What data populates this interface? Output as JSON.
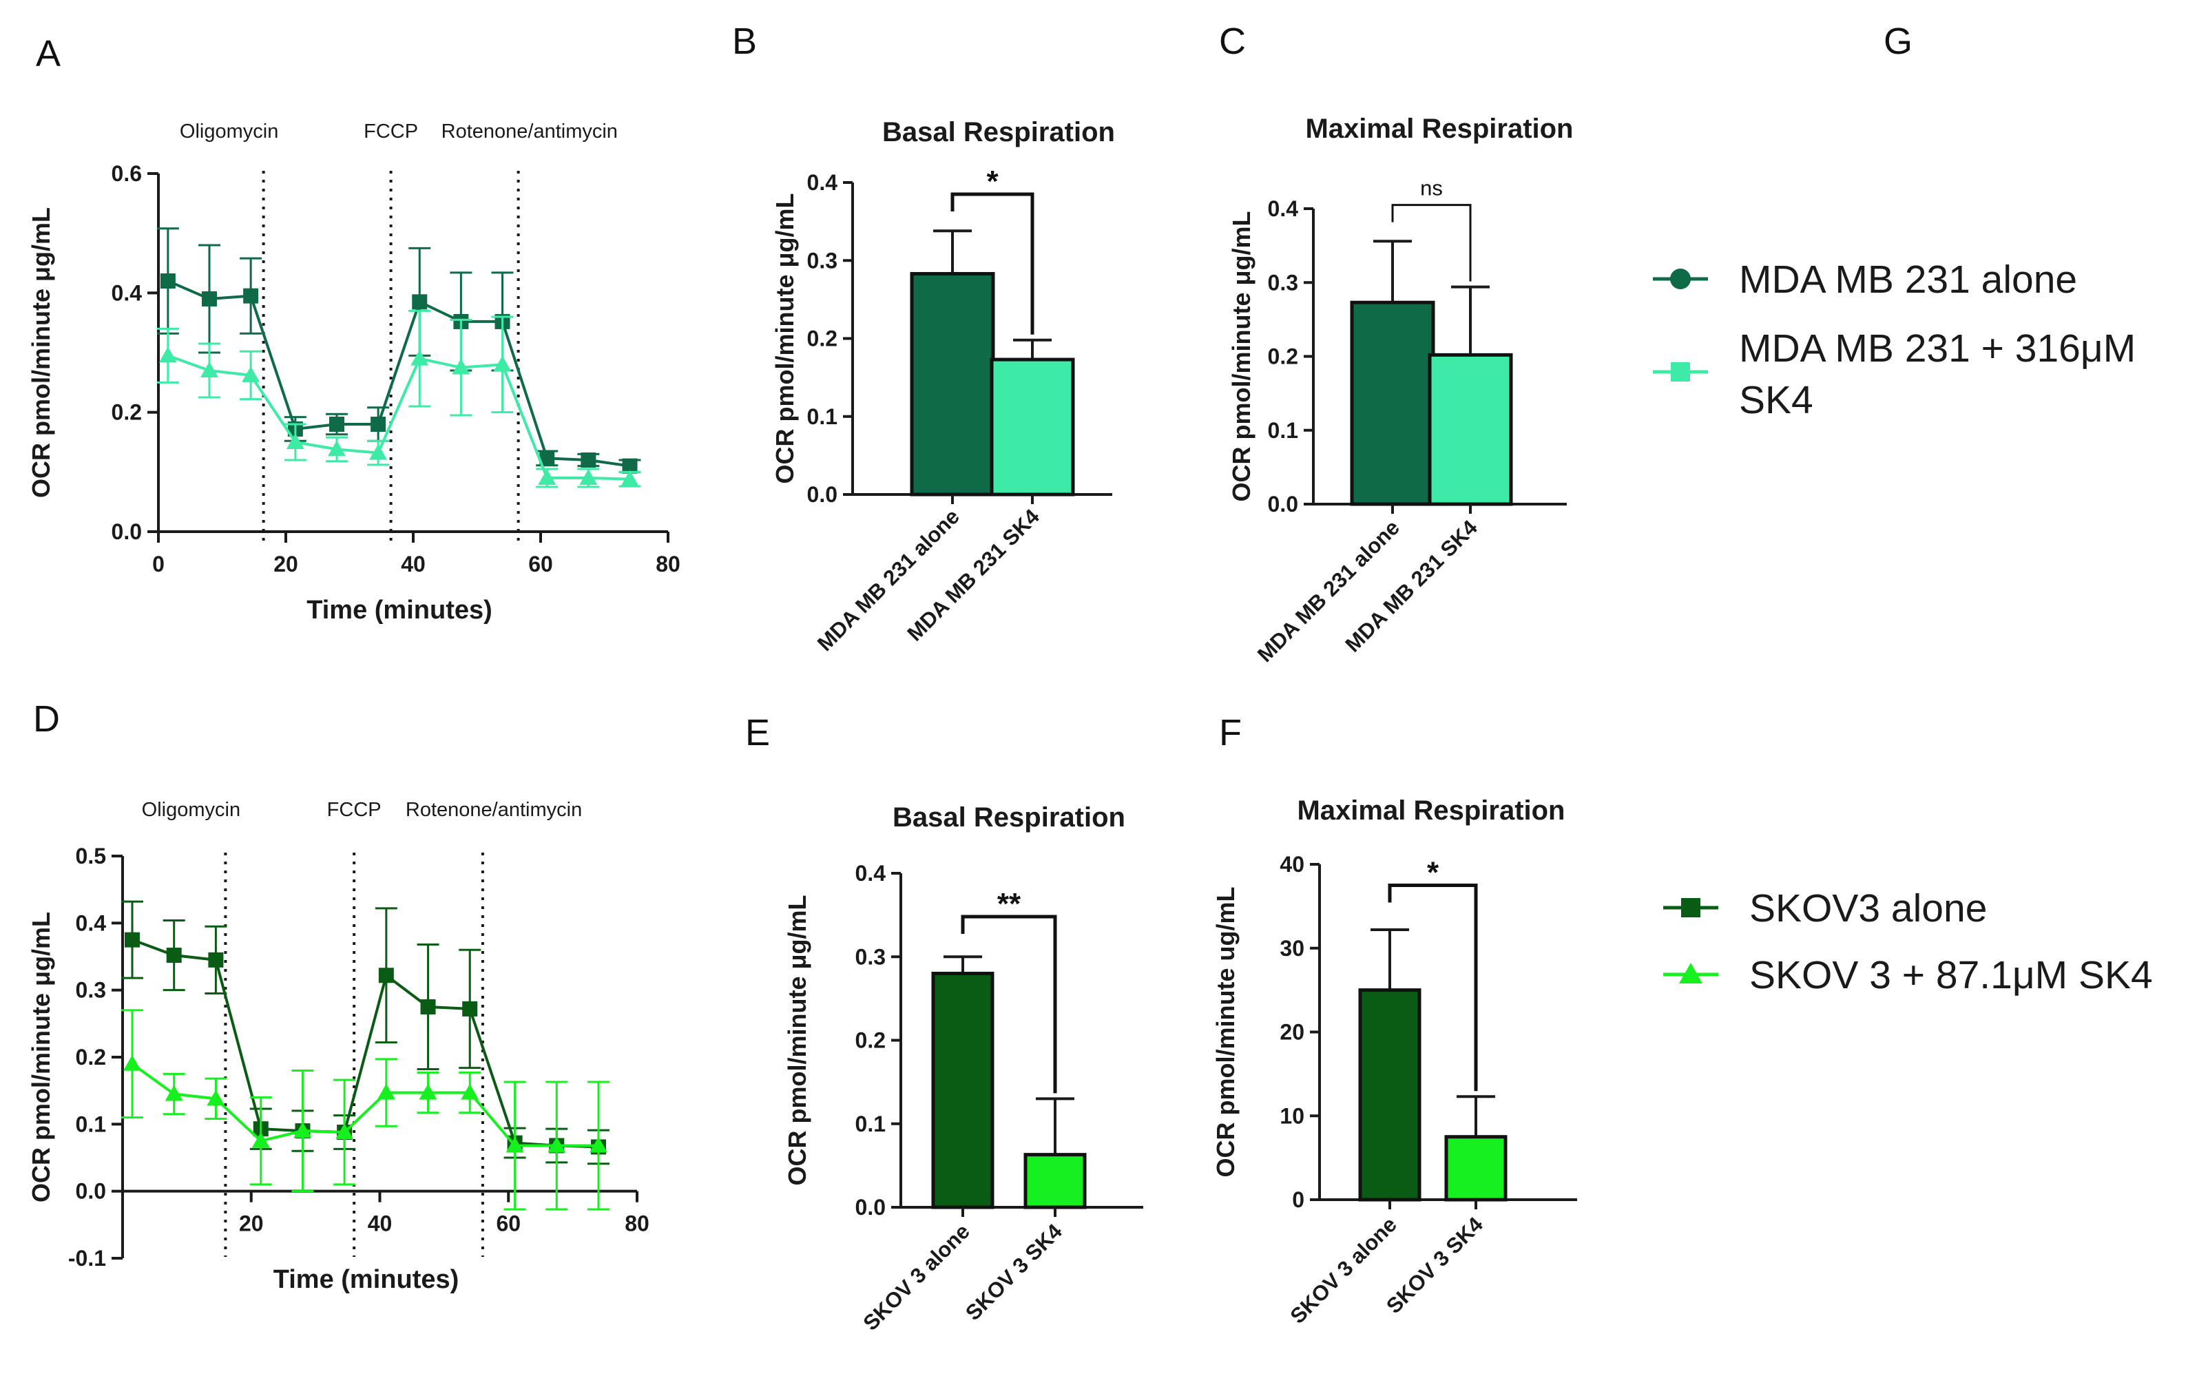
{
  "panel_letters": {
    "A": "A",
    "B": "B",
    "C": "C",
    "D": "D",
    "E": "E",
    "F": "F",
    "G": "G"
  },
  "colors": {
    "mda_alone": "#0f6b47",
    "mda_sk4": "#3deba6",
    "skov_alone": "#0a5c14",
    "skov_sk4": "#16f01e",
    "axis": "#1a1a1a"
  },
  "legend_top": [
    {
      "label": "MDA MB 231 alone",
      "marker": "circle",
      "color_key": "mda_alone"
    },
    {
      "label": "MDA MB 231 + 316μM",
      "label2": "SK4",
      "marker": "square",
      "color_key": "mda_sk4"
    }
  ],
  "legend_bottom": [
    {
      "label": "SKOV3 alone",
      "marker": "square",
      "color_key": "skov_alone"
    },
    {
      "label": "SKOV 3 + 87.1μM SK4",
      "marker": "triangle",
      "color_key": "skov_sk4"
    }
  ],
  "chart_data": [
    {
      "id": "A",
      "type": "line",
      "xlabel": "Time (minutes)",
      "ylabel": "OCR pmol/minute μg/mL",
      "xlim": [
        0,
        80
      ],
      "ylim": [
        0,
        0.6
      ],
      "xticks": [
        "0",
        "20",
        "40",
        "60",
        "80"
      ],
      "yticks": [
        "0.0",
        "0.2",
        "0.4",
        "0.6"
      ],
      "injections": [
        {
          "label": "Oligomycin",
          "x": 16.5
        },
        {
          "label": "FCCP",
          "x": 36.5
        },
        {
          "label": "Rotenone/antimycin",
          "x": 56.5
        }
      ],
      "series": [
        {
          "name": "MDA MB 231 alone",
          "color_key": "mda_alone",
          "marker": "square",
          "x": [
            1.5,
            8,
            14.5,
            21.5,
            28,
            34.5,
            41,
            47.5,
            54,
            61,
            67.5,
            74
          ],
          "y": [
            0.42,
            0.39,
            0.395,
            0.172,
            0.18,
            0.18,
            0.385,
            0.352,
            0.352,
            0.123,
            0.12,
            0.11
          ],
          "err": [
            0.088,
            0.09,
            0.063,
            0.02,
            0.017,
            0.028,
            0.09,
            0.082,
            0.082,
            0.012,
            0.01,
            0.01
          ]
        },
        {
          "name": "MDA MB 231 + 316μM SK4",
          "color_key": "mda_sk4",
          "marker": "triangle",
          "x": [
            1.5,
            8,
            14.5,
            21.5,
            28,
            34.5,
            41,
            47.5,
            54,
            61,
            67.5,
            74
          ],
          "y": [
            0.295,
            0.27,
            0.262,
            0.15,
            0.138,
            0.132,
            0.29,
            0.275,
            0.28,
            0.09,
            0.09,
            0.088
          ],
          "err": [
            0.045,
            0.045,
            0.04,
            0.03,
            0.02,
            0.02,
            0.08,
            0.08,
            0.08,
            0.015,
            0.015,
            0.012
          ]
        }
      ]
    },
    {
      "id": "B",
      "type": "bar",
      "title": "Basal Respiration",
      "ylabel": "OCR pmol/minute μg/mL",
      "ylim": [
        0,
        0.4
      ],
      "yticks": [
        "0.0",
        "0.1",
        "0.2",
        "0.3",
        "0.4"
      ],
      "categories": [
        "MDA MB 231 alone",
        "MDA MB 231 SK4"
      ],
      "values": [
        0.283,
        0.173
      ],
      "err": [
        0.055,
        0.025
      ],
      "color_keys": [
        "mda_alone",
        "mda_sk4"
      ],
      "significance": "*",
      "bracket_y": 0.385
    },
    {
      "id": "C",
      "type": "bar",
      "title": "Maximal Respiration",
      "ylabel": "OCR pmol/minute μg/mL",
      "ylim": [
        0,
        0.4
      ],
      "yticks": [
        "0.0",
        "0.1",
        "0.2",
        "0.3",
        "0.4"
      ],
      "categories": [
        "MDA MB 231 alone",
        "MDA MB 231 SK4"
      ],
      "values": [
        0.273,
        0.202
      ],
      "err": [
        0.083,
        0.092
      ],
      "color_keys": [
        "mda_alone",
        "mda_sk4"
      ],
      "significance": "ns",
      "bracket_y": 0.405
    },
    {
      "id": "D",
      "type": "line",
      "xlabel": "Time (minutes)",
      "ylabel": "OCR pmol/minute  μg/mL",
      "xlim": [
        0,
        80
      ],
      "ylim": [
        -0.1,
        0.5
      ],
      "xticks": [
        "20",
        "40",
        "60",
        "80"
      ],
      "yticks": [
        "-0.1",
        "0.0",
        "0.1",
        "0.2",
        "0.3",
        "0.4",
        "0.5"
      ],
      "injections": [
        {
          "label": "Oligomycin",
          "x": 16
        },
        {
          "label": "FCCP",
          "x": 36
        },
        {
          "label": "Rotenone/antimycin",
          "x": 56
        }
      ],
      "series": [
        {
          "name": "SKOV3 alone",
          "color_key": "skov_alone",
          "marker": "square",
          "x": [
            1.5,
            8,
            14.5,
            21.5,
            28,
            34.5,
            41,
            47.5,
            54,
            61,
            67.5,
            74
          ],
          "y": [
            0.375,
            0.352,
            0.345,
            0.093,
            0.09,
            0.088,
            0.322,
            0.275,
            0.272,
            0.072,
            0.068,
            0.066
          ],
          "err": [
            0.057,
            0.052,
            0.05,
            0.03,
            0.03,
            0.025,
            0.1,
            0.093,
            0.088,
            0.022,
            0.025,
            0.025
          ]
        },
        {
          "name": "SKOV 3 + 87.1μM SK4",
          "color_key": "skov_sk4",
          "marker": "triangle",
          "x": [
            1.5,
            8,
            14.5,
            21.5,
            28,
            34.5,
            41,
            47.5,
            54,
            61,
            67.5,
            74
          ],
          "y": [
            0.19,
            0.145,
            0.138,
            0.075,
            0.09,
            0.088,
            0.147,
            0.147,
            0.147,
            0.068,
            0.068,
            0.068
          ],
          "err": [
            0.08,
            0.03,
            0.03,
            0.065,
            0.09,
            0.078,
            0.05,
            0.03,
            0.03,
            0.095,
            0.095,
            0.095
          ]
        }
      ]
    },
    {
      "id": "E",
      "type": "bar",
      "title": "Basal Respiration",
      "ylabel": "OCR pmol/minute  μg/mL",
      "ylim": [
        0,
        0.4
      ],
      "yticks": [
        "0.0",
        "0.1",
        "0.2",
        "0.3",
        "0.4"
      ],
      "categories": [
        "SKOV 3 alone",
        "SKOV 3 SK4"
      ],
      "values": [
        0.28,
        0.063
      ],
      "err": [
        0.02,
        0.067
      ],
      "color_keys": [
        "skov_alone",
        "skov_sk4"
      ],
      "significance": "**",
      "bracket_y": 0.348
    },
    {
      "id": "F",
      "type": "bar",
      "title": "Maximal Respiration",
      "ylabel": "OCR pmol/minute  ug/mL",
      "ylim": [
        0,
        40
      ],
      "yticks": [
        "0",
        "10",
        "20",
        "30",
        "40"
      ],
      "categories": [
        "SKOV 3 alone",
        "SKOV 3 SK4"
      ],
      "values": [
        25,
        7.5
      ],
      "err": [
        7.2,
        4.8
      ],
      "color_keys": [
        "skov_alone",
        "skov_sk4"
      ],
      "significance": "*",
      "bracket_y": 37.5
    }
  ]
}
